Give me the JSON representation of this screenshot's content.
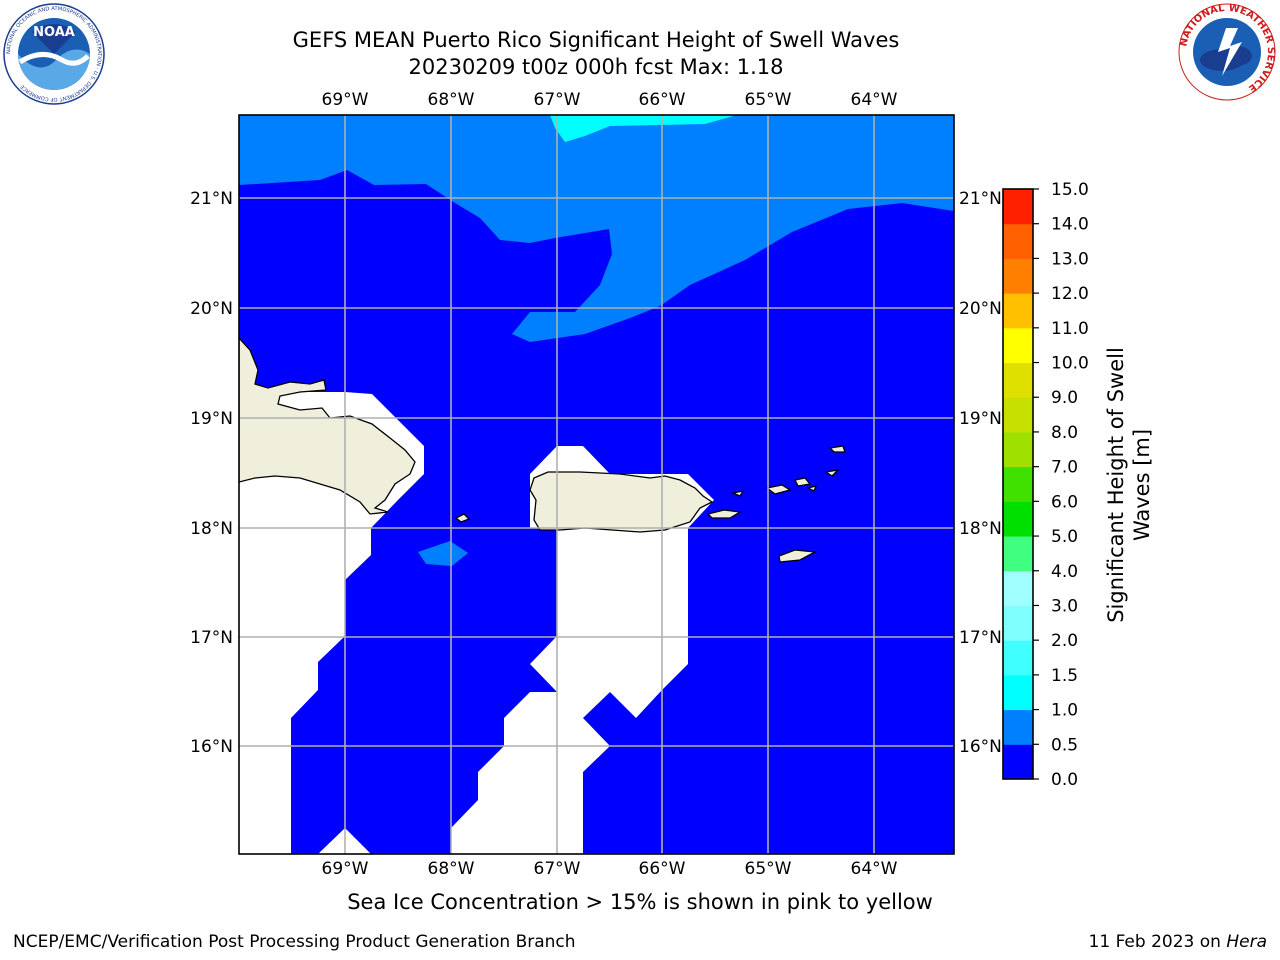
{
  "title_line1": "GEFS MEAN Puerto Rico Significant Height of Swell Waves",
  "title_line2": "20230209 t00z 000h fcst   Max: 1.18",
  "logos": {
    "noaa": {
      "text": "NOAA",
      "ring_text": "NATIONAL OCEANIC AND ATMOSPHERIC ADMINISTRATION · U.S. DEPARTMENT OF COMMERCE"
    },
    "nws": {
      "ring_text": "NATIONAL WEATHER SERVICE"
    }
  },
  "map": {
    "lon_labels": [
      "69°W",
      "68°W",
      "67°W",
      "66°W",
      "65°W",
      "64°W"
    ],
    "lat_labels": [
      "21°N",
      "20°N",
      "19°N",
      "18°N",
      "17°N",
      "16°N"
    ],
    "colors": {
      "water_low": "#0000ff",
      "water_mid": "#0080ff",
      "water_high": "#00ffff",
      "land": "#efefdc",
      "grid": "#b0b0b0"
    }
  },
  "colorbar": {
    "label": "Significant Height of Swell Waves [m]",
    "label_line1": "Significant Height of Swell",
    "label_line2": "Waves [m]",
    "ticks": [
      "0.0",
      "0.5",
      "1.0",
      "1.5",
      "2.0",
      "3.0",
      "4.0",
      "5.0",
      "6.0",
      "7.0",
      "8.0",
      "9.0",
      "10.0",
      "11.0",
      "12.0",
      "13.0",
      "14.0",
      "15.0"
    ],
    "colors": [
      "#0000ff",
      "#0080ff",
      "#00ffff",
      "#40ffff",
      "#80ffff",
      "#a0ffff",
      "#40ff80",
      "#00e000",
      "#40e000",
      "#a0e000",
      "#c8e000",
      "#e0e000",
      "#ffff00",
      "#ffc000",
      "#ff8000",
      "#ff6000",
      "#ff2000",
      "#ff0000"
    ]
  },
  "sea_ice_note": "Sea Ice Concentration > 15% is shown in pink to yellow",
  "footer": {
    "left": "NCEP/EMC/Verification Post Processing Product Generation Branch",
    "date": "11 Feb 2023 on ",
    "machine": "Hera"
  }
}
